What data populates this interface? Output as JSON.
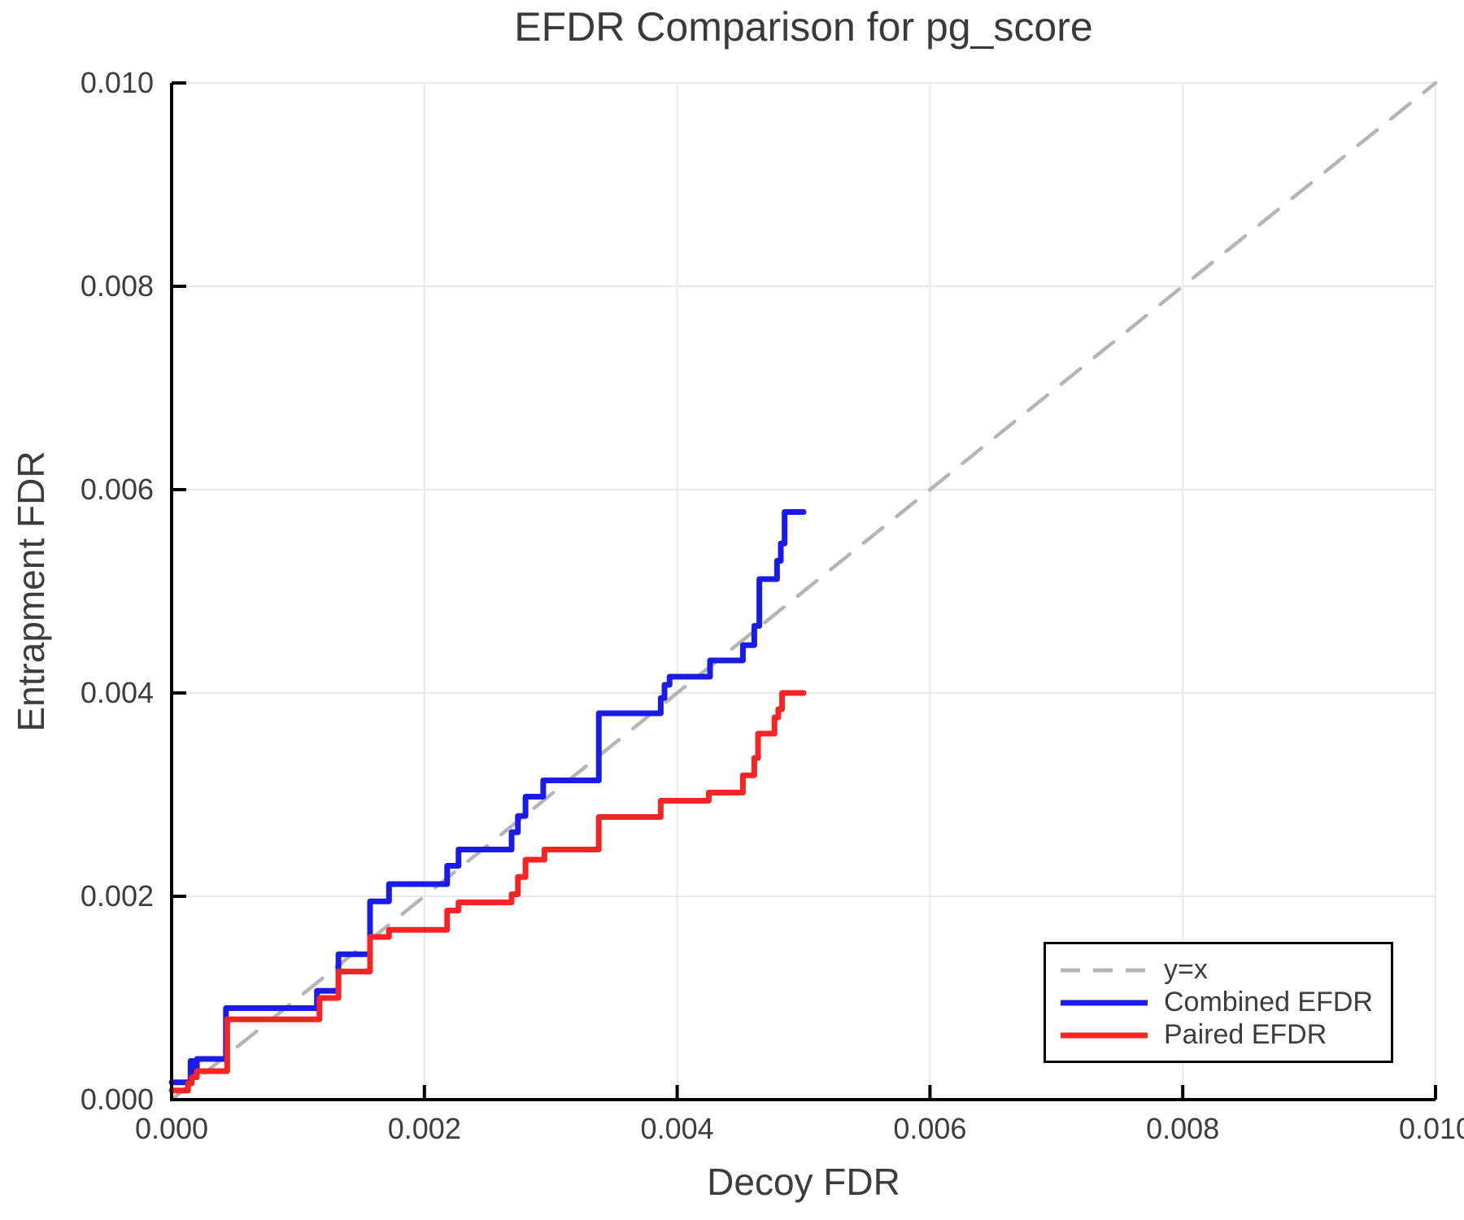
{
  "chart_data": {
    "type": "line",
    "title": "EFDR Comparison for pg_score",
    "xlabel": "Decoy FDR",
    "ylabel": "Entrapment FDR",
    "xlim": [
      0.0,
      0.01
    ],
    "ylim": [
      0.0,
      0.01
    ],
    "grid": true,
    "legend_position": "bottom-right",
    "x_ticks": {
      "values": [
        0.0,
        0.002,
        0.004,
        0.006,
        0.008,
        0.01
      ],
      "labels": [
        "0.000",
        "0.002",
        "0.004",
        "0.006",
        "0.008",
        "0.010"
      ]
    },
    "y_ticks": {
      "values": [
        0.0,
        0.002,
        0.004,
        0.006,
        0.008,
        0.01
      ],
      "labels": [
        "0.000",
        "0.002",
        "0.004",
        "0.006",
        "0.008",
        "0.010"
      ]
    },
    "colors": {
      "grid": "#e8e8e8",
      "axis": "#000000",
      "text": "#3d3d3d",
      "background": "#ffffff"
    },
    "series": [
      {
        "name": "y=x",
        "mode": "line",
        "style": "dashed",
        "color": "#b5b5b5",
        "width": 4.5,
        "points": [
          [
            0.0,
            0.0
          ],
          [
            0.01,
            0.01
          ]
        ]
      },
      {
        "name": "Combined EFDR",
        "mode": "step",
        "style": "solid",
        "color": "#1b1be8",
        "width": 7,
        "points": [
          [
            0.0,
            0.00017
          ],
          [
            0.00015,
            0.00038
          ],
          [
            0.00017,
            0.00028
          ],
          [
            0.0002,
            0.0004
          ],
          [
            0.00043,
            0.0009
          ],
          [
            0.00115,
            0.00107
          ],
          [
            0.00132,
            0.00143
          ],
          [
            0.00157,
            0.00195
          ],
          [
            0.00172,
            0.00212
          ],
          [
            0.00218,
            0.0023
          ],
          [
            0.00227,
            0.00246
          ],
          [
            0.00269,
            0.00263
          ],
          [
            0.00274,
            0.00279
          ],
          [
            0.0028,
            0.00298
          ],
          [
            0.00294,
            0.00314
          ],
          [
            0.00338,
            0.0038
          ],
          [
            0.00387,
            0.00395
          ],
          [
            0.0039,
            0.00408
          ],
          [
            0.00394,
            0.00416
          ],
          [
            0.00426,
            0.00432
          ],
          [
            0.00452,
            0.00447
          ],
          [
            0.00461,
            0.00466
          ],
          [
            0.00465,
            0.00512
          ],
          [
            0.00479,
            0.0053
          ],
          [
            0.00482,
            0.00547
          ],
          [
            0.00485,
            0.00578
          ],
          [
            0.005,
            0.00578
          ]
        ]
      },
      {
        "name": "Paired EFDR",
        "mode": "step",
        "style": "solid",
        "color": "#f62424",
        "width": 7,
        "points": [
          [
            0.0,
            9e-05
          ],
          [
            0.00013,
            0.00016
          ],
          [
            0.00016,
            0.00022
          ],
          [
            0.0002,
            0.00028
          ],
          [
            0.00044,
            0.00079
          ],
          [
            0.00117,
            0.001
          ],
          [
            0.00132,
            0.00126
          ],
          [
            0.00157,
            0.0016
          ],
          [
            0.00172,
            0.00167
          ],
          [
            0.00218,
            0.00186
          ],
          [
            0.00227,
            0.00194
          ],
          [
            0.00269,
            0.00202
          ],
          [
            0.00274,
            0.00219
          ],
          [
            0.0028,
            0.00236
          ],
          [
            0.00295,
            0.00246
          ],
          [
            0.00338,
            0.00278
          ],
          [
            0.00387,
            0.00294
          ],
          [
            0.00425,
            0.00302
          ],
          [
            0.00452,
            0.00319
          ],
          [
            0.00461,
            0.00336
          ],
          [
            0.00464,
            0.0036
          ],
          [
            0.00477,
            0.00376
          ],
          [
            0.0048,
            0.00384
          ],
          [
            0.00483,
            0.004
          ],
          [
            0.005,
            0.004
          ]
        ]
      }
    ]
  }
}
